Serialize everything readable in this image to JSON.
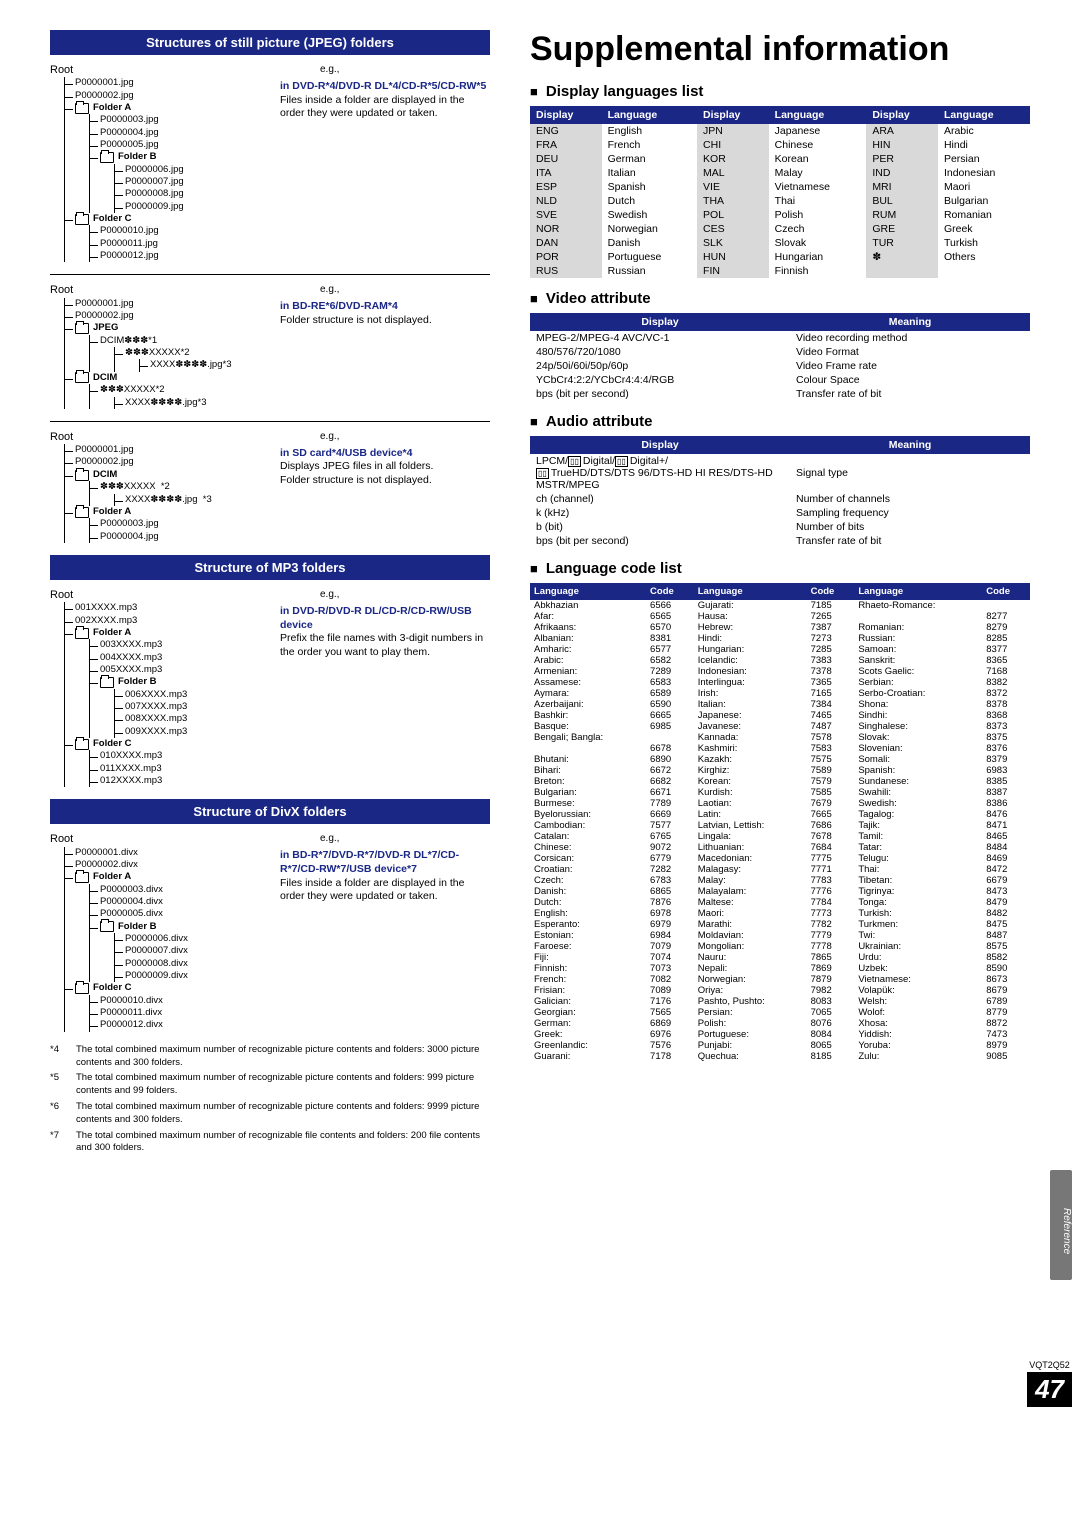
{
  "left": {
    "header_jpeg": "Structures of still picture (JPEG) folders",
    "header_mp3": "Structure of MP3 folders",
    "header_divx": "Structure of DivX folders",
    "eg": "e.g.,",
    "root": "Root",
    "dcim": "DCIM",
    "dcim_sub1": "DCIM✽✽✽",
    "sup1": "*1",
    "xxxxx5": "✽✽✽XXXXX",
    "sup2": "*2",
    "xxxx_jpg": "XXXX✽✽✽✽.jpg",
    "sup3": "*3",
    "xxxxx_tag": "✽✽✽XXXXX",
    "folderA": "Folder A",
    "folderB": "Folder B",
    "folderC": "Folder C",
    "jpeg_block1_files1": [
      "P0000001.jpg",
      "P0000002.jpg"
    ],
    "jpeg_block1_filesA": [
      "P0000003.jpg",
      "P0000004.jpg",
      "P0000005.jpg"
    ],
    "jpeg_block1_filesB": [
      "P0000006.jpg",
      "P0000007.jpg",
      "P0000008.jpg",
      "P0000009.jpg"
    ],
    "jpeg_block1_filesC": [
      "P0000010.jpg",
      "P0000011.jpg",
      "P0000012.jpg"
    ],
    "jpeg_desc1_title": "in DVD-R*4/DVD-R DL*4/CD-R*5/CD-RW*5",
    "jpeg_desc1_body": "Files inside a folder are displayed in the order they were updated or taken.",
    "jpeg_desc2_title": "in BD-RE*6/DVD-RAM*4",
    "jpeg_desc2_body": "Folder structure is not displayed.",
    "jpeg_block2_files1": [
      "P0000001.jpg",
      "P0000002.jpg"
    ],
    "jpeg_label": "JPEG",
    "sd_files1": [
      "P0000001.jpg",
      "P0000002.jpg"
    ],
    "sd_filesA": [
      "P0000003.jpg",
      "P0000004.jpg"
    ],
    "sd_desc_title": "in SD card*4/USB device*4",
    "sd_desc_body1": "Displays JPEG files in all folders.",
    "sd_desc_body2": "Folder structure is not displayed.",
    "mp3_files1": [
      "001XXXX.mp3",
      "002XXXX.mp3"
    ],
    "mp3_filesA": [
      "003XXXX.mp3",
      "004XXXX.mp3",
      "005XXXX.mp3"
    ],
    "mp3_filesB": [
      "006XXXX.mp3",
      "007XXXX.mp3",
      "008XXXX.mp3",
      "009XXXX.mp3"
    ],
    "mp3_filesC": [
      "010XXXX.mp3",
      "011XXXX.mp3",
      "012XXXX.mp3"
    ],
    "mp3_desc_title": "in DVD-R/DVD-R DL/CD-R/CD-RW/USB device",
    "mp3_desc_body": "Prefix the file names with 3-digit numbers in the order you want to play them.",
    "divx_files1": [
      "P0000001.divx",
      "P0000002.divx"
    ],
    "divx_filesA": [
      "P0000003.divx",
      "P0000004.divx",
      "P0000005.divx"
    ],
    "divx_filesB": [
      "P0000006.divx",
      "P0000007.divx",
      "P0000008.divx",
      "P0000009.divx"
    ],
    "divx_filesC": [
      "P0000010.divx",
      "P0000011.divx",
      "P0000012.divx"
    ],
    "divx_desc_title": "in BD-R*7/DVD-R*7/DVD-R DL*7/CD-R*7/CD-RW*7/USB device*7",
    "divx_desc_body": "Files inside a folder are displayed in the order they were updated or taken.",
    "footnotes": [
      {
        "tag": "*4",
        "text": "The total combined maximum number of recognizable picture contents and folders: 3000 picture contents and 300 folders."
      },
      {
        "tag": "*5",
        "text": "The total combined maximum number of recognizable picture contents and folders: 999 picture contents and 99 folders."
      },
      {
        "tag": "*6",
        "text": "The total combined maximum number of recognizable picture contents and folders: 9999 picture contents and 300 folders."
      },
      {
        "tag": "*7",
        "text": "The total combined maximum number of recognizable file contents and folders: 200 file contents and 300 folders."
      }
    ]
  },
  "right": {
    "title": "Supplemental information",
    "h_display_lang": "Display languages list",
    "dl_hdr": [
      "Display",
      "Language",
      "Display",
      "Language",
      "Display",
      "Language"
    ],
    "dl_rows": [
      [
        "ENG",
        "English",
        "JPN",
        "Japanese",
        "ARA",
        "Arabic"
      ],
      [
        "FRA",
        "French",
        "CHI",
        "Chinese",
        "HIN",
        "Hindi"
      ],
      [
        "DEU",
        "German",
        "KOR",
        "Korean",
        "PER",
        "Persian"
      ],
      [
        "ITA",
        "Italian",
        "MAL",
        "Malay",
        "IND",
        "Indonesian"
      ],
      [
        "ESP",
        "Spanish",
        "VIE",
        "Vietnamese",
        "MRI",
        "Maori"
      ],
      [
        "NLD",
        "Dutch",
        "THA",
        "Thai",
        "BUL",
        "Bulgarian"
      ],
      [
        "SVE",
        "Swedish",
        "POL",
        "Polish",
        "RUM",
        "Romanian"
      ],
      [
        "NOR",
        "Norwegian",
        "CES",
        "Czech",
        "GRE",
        "Greek"
      ],
      [
        "DAN",
        "Danish",
        "SLK",
        "Slovak",
        "TUR",
        "Turkish"
      ],
      [
        "POR",
        "Portuguese",
        "HUN",
        "Hungarian",
        "✽",
        "Others"
      ],
      [
        "RUS",
        "Russian",
        "FIN",
        "Finnish",
        "",
        ""
      ]
    ],
    "h_video_attr": "Video attribute",
    "va_hdr": [
      "Display",
      "Meaning"
    ],
    "va_rows": [
      [
        "MPEG-2/MPEG-4 AVC/VC-1",
        "Video recording method"
      ],
      [
        "480/576/720/1080",
        "Video Format"
      ],
      [
        "24p/50i/60i/50p/60p",
        "Video Frame rate"
      ],
      [
        "YCbCr4:2:2/YCbCr4:4:4/RGB",
        "Colour Space"
      ],
      [
        "bps (bit per second)",
        "Transfer rate of bit"
      ]
    ],
    "h_audio_attr": "Audio attribute",
    "aa_hdr": [
      "Display",
      "Meaning"
    ],
    "aa_row1_left_pre": "LPCM/",
    "aa_row1_left_d1": "▯▯",
    "aa_row1_left_mid1": "Digital/",
    "aa_row1_left_d2": "▯▯",
    "aa_row1_left_mid2": "Digital+/",
    "aa_row2_left_pre": "▯▯",
    "aa_row2_left": "TrueHD/DTS/DTS 96/DTS-HD HI RES/DTS-HD MSTR/MPEG",
    "aa_row1_right": "Signal type",
    "aa_rows": [
      [
        "ch (channel)",
        "Number of channels"
      ],
      [
        "k (kHz)",
        "Sampling frequency"
      ],
      [
        "b (bit)",
        "Number of bits"
      ],
      [
        "bps (bit per second)",
        "Transfer rate of bit"
      ]
    ],
    "h_lang_code": "Language code list",
    "lc_hdr": [
      "Language",
      "Code",
      "Language",
      "Code",
      "Language",
      "Code"
    ],
    "lc_rows": [
      [
        "Abkhazian",
        "6566",
        "Gujarati:",
        "7185",
        "Rhaeto-Romance:",
        ""
      ],
      [
        "Afar:",
        "6565",
        "Hausa:",
        "7265",
        "",
        "8277"
      ],
      [
        "Afrikaans:",
        "6570",
        "Hebrew:",
        "7387",
        "Romanian:",
        "8279"
      ],
      [
        "Albanian:",
        "8381",
        "Hindi:",
        "7273",
        "Russian:",
        "8285"
      ],
      [
        "Amharic:",
        "6577",
        "Hungarian:",
        "7285",
        "Samoan:",
        "8377"
      ],
      [
        "Arabic:",
        "6582",
        "Icelandic:",
        "7383",
        "Sanskrit:",
        "8365"
      ],
      [
        "Armenian:",
        "7289",
        "Indonesian:",
        "7378",
        "Scots Gaelic:",
        "7168"
      ],
      [
        "Assamese:",
        "6583",
        "Interlingua:",
        "7365",
        "Serbian:",
        "8382"
      ],
      [
        "Aymara:",
        "6589",
        "Irish:",
        "7165",
        "Serbo-Croatian:",
        "8372"
      ],
      [
        "Azerbaijani:",
        "6590",
        "Italian:",
        "7384",
        "Shona:",
        "8378"
      ],
      [
        "Bashkir:",
        "6665",
        "Japanese:",
        "7465",
        "Sindhi:",
        "8368"
      ],
      [
        "Basque:",
        "6985",
        "Javanese:",
        "7487",
        "Singhalese:",
        "8373"
      ],
      [
        "Bengali; Bangla:",
        "",
        "Kannada:",
        "7578",
        "Slovak:",
        "8375"
      ],
      [
        "",
        "6678",
        "Kashmiri:",
        "7583",
        "Slovenian:",
        "8376"
      ],
      [
        "Bhutani:",
        "6890",
        "Kazakh:",
        "7575",
        "Somali:",
        "8379"
      ],
      [
        "Bihari:",
        "6672",
        "Kirghiz:",
        "7589",
        "Spanish:",
        "6983"
      ],
      [
        "Breton:",
        "6682",
        "Korean:",
        "7579",
        "Sundanese:",
        "8385"
      ],
      [
        "Bulgarian:",
        "6671",
        "Kurdish:",
        "7585",
        "Swahili:",
        "8387"
      ],
      [
        "Burmese:",
        "7789",
        "Laotian:",
        "7679",
        "Swedish:",
        "8386"
      ],
      [
        "Byelorussian:",
        "6669",
        "Latin:",
        "7665",
        "Tagalog:",
        "8476"
      ],
      [
        "Cambodian:",
        "7577",
        "Latvian, Lettish:",
        "7686",
        "Tajik:",
        "8471"
      ],
      [
        "Catalan:",
        "6765",
        "Lingala:",
        "7678",
        "Tamil:",
        "8465"
      ],
      [
        "Chinese:",
        "9072",
        "Lithuanian:",
        "7684",
        "Tatar:",
        "8484"
      ],
      [
        "Corsican:",
        "6779",
        "Macedonian:",
        "7775",
        "Telugu:",
        "8469"
      ],
      [
        "Croatian:",
        "7282",
        "Malagasy:",
        "7771",
        "Thai:",
        "8472"
      ],
      [
        "Czech:",
        "6783",
        "Malay:",
        "7783",
        "Tibetan:",
        "6679"
      ],
      [
        "Danish:",
        "6865",
        "Malayalam:",
        "7776",
        "Tigrinya:",
        "8473"
      ],
      [
        "Dutch:",
        "7876",
        "Maltese:",
        "7784",
        "Tonga:",
        "8479"
      ],
      [
        "English:",
        "6978",
        "Maori:",
        "7773",
        "Turkish:",
        "8482"
      ],
      [
        "Esperanto:",
        "6979",
        "Marathi:",
        "7782",
        "Turkmen:",
        "8475"
      ],
      [
        "Estonian:",
        "6984",
        "Moldavian:",
        "7779",
        "Twi:",
        "8487"
      ],
      [
        "Faroese:",
        "7079",
        "Mongolian:",
        "7778",
        "Ukrainian:",
        "8575"
      ],
      [
        "Fiji:",
        "7074",
        "Nauru:",
        "7865",
        "Urdu:",
        "8582"
      ],
      [
        "Finnish:",
        "7073",
        "Nepali:",
        "7869",
        "Uzbek:",
        "8590"
      ],
      [
        "French:",
        "7082",
        "Norwegian:",
        "7879",
        "Vietnamese:",
        "8673"
      ],
      [
        "Frisian:",
        "7089",
        "Oriya:",
        "7982",
        "Volapük:",
        "8679"
      ],
      [
        "Galician:",
        "7176",
        "Pashto, Pushto:",
        "8083",
        "Welsh:",
        "6789"
      ],
      [
        "Georgian:",
        "7565",
        "Persian:",
        "7065",
        "Wolof:",
        "8779"
      ],
      [
        "German:",
        "6869",
        "Polish:",
        "8076",
        "Xhosa:",
        "8872"
      ],
      [
        "Greek:",
        "6976",
        "Portuguese:",
        "8084",
        "Yiddish:",
        "7473"
      ],
      [
        "Greenlandic:",
        "7576",
        "Punjabi:",
        "8065",
        "Yoruba:",
        "8979"
      ],
      [
        "Guarani:",
        "7178",
        "Quechua:",
        "8185",
        "Zulu:",
        "9085"
      ]
    ],
    "side_tab": "Reference",
    "doc_code": "VQT2Q52",
    "page_num": "47"
  }
}
